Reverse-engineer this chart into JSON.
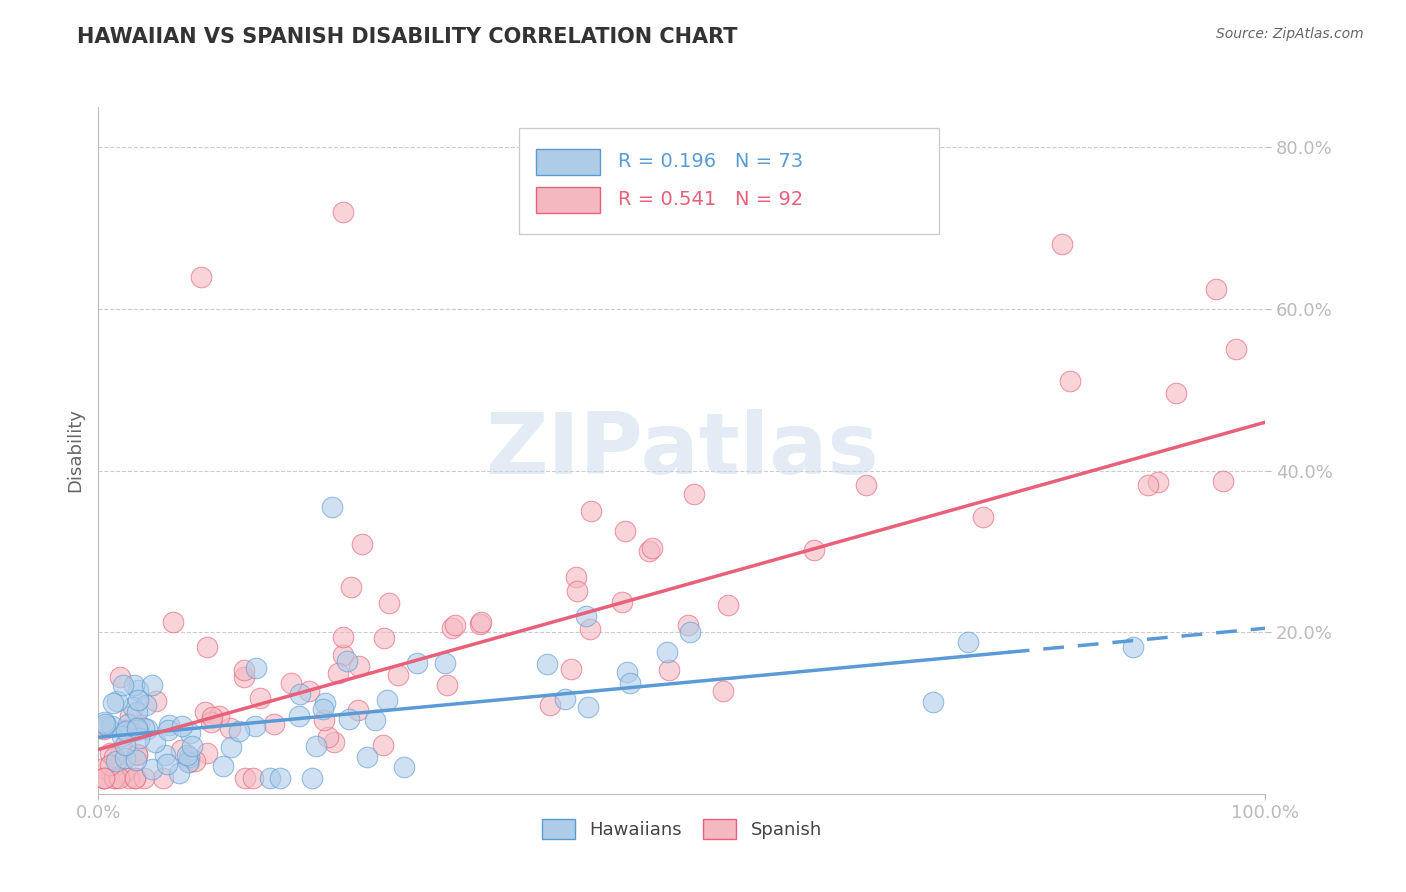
{
  "title": "HAWAIIAN VS SPANISH DISABILITY CORRELATION CHART",
  "source": "Source: ZipAtlas.com",
  "ylabel": "Disability",
  "watermark": "ZIPatlas",
  "xlim": [
    0.0,
    1.0
  ],
  "ylim": [
    0.0,
    0.85
  ],
  "xtick_labels": [
    "0.0%",
    "100.0%"
  ],
  "ytick_labels": [
    "20.0%",
    "40.0%",
    "60.0%",
    "80.0%"
  ],
  "ytick_values": [
    0.2,
    0.4,
    0.6,
    0.8
  ],
  "grid_color": "#cccccc",
  "background_color": "#ffffff",
  "hawaiian_color": "#5b9bd5",
  "hawaiian_fill": "#aecce8",
  "spanish_color": "#e8607a",
  "spanish_fill": "#f4b8c0",
  "R_hawaiian": 0.196,
  "N_hawaiian": 73,
  "R_spanish": 0.541,
  "N_spanish": 92,
  "legend_labels": [
    "Hawaiians",
    "Spanish"
  ],
  "ytick_color": "#5b9bd5",
  "xtick_color": "#5b9bd5",
  "hawaiian_line_start": 0.0,
  "hawaiian_line_solid_end": 0.78,
  "hawaiian_line_end": 1.0,
  "hawaiian_line_y0": 0.07,
  "hawaiian_line_y1": 0.205,
  "spanish_line_start": 0.0,
  "spanish_line_end": 1.0,
  "spanish_line_y0": 0.055,
  "spanish_line_y1": 0.46
}
